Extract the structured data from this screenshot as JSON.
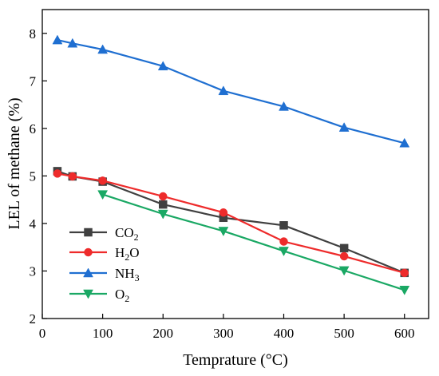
{
  "chart_data": {
    "type": "line",
    "xlabel": "Temprature (°C)",
    "ylabel": "LEL of methane (%)",
    "xlim": [
      0,
      640
    ],
    "ylim": [
      2,
      8.5
    ],
    "xticks": [
      0,
      100,
      200,
      300,
      400,
      500,
      600
    ],
    "yticks": [
      2,
      3,
      4,
      5,
      6,
      7,
      8
    ],
    "xtick_labels": [
      "0",
      "100",
      "200",
      "300",
      "400",
      "500",
      "600"
    ],
    "ytick_labels": [
      "2",
      "3",
      "4",
      "5",
      "6",
      "7",
      "8"
    ],
    "grid": false,
    "legend_placement": "bottom-left",
    "series": [
      {
        "name": "CO2",
        "label_main": "CO",
        "label_sub": "2",
        "color": "#404040",
        "marker": "square",
        "x": [
          25,
          50,
          100,
          200,
          300,
          400,
          500,
          600
        ],
        "y": [
          5.1,
          4.99,
          4.88,
          4.4,
          4.12,
          3.96,
          3.48,
          2.96
        ]
      },
      {
        "name": "H2O",
        "label_main": "H",
        "label_sub": "2",
        "label_tail": "O",
        "color": "#ee2b2b",
        "marker": "circle",
        "x": [
          25,
          50,
          100,
          200,
          300,
          400,
          500,
          600
        ],
        "y": [
          5.05,
          4.99,
          4.9,
          4.57,
          4.23,
          3.62,
          3.31,
          2.96
        ]
      },
      {
        "name": "NH3",
        "label_main": "NH",
        "label_sub": "3",
        "color": "#1f6fd1",
        "marker": "triangle-up",
        "x": [
          25,
          50,
          100,
          200,
          300,
          400,
          500,
          600
        ],
        "y": [
          7.86,
          7.79,
          7.66,
          7.31,
          6.79,
          6.46,
          6.02,
          5.69
        ]
      },
      {
        "name": "O2",
        "label_main": "O",
        "label_sub": "2",
        "color": "#1aa864",
        "marker": "triangle-down",
        "x": [
          100,
          200,
          300,
          400,
          500,
          600
        ],
        "y": [
          4.61,
          4.2,
          3.84,
          3.42,
          3.01,
          2.6
        ]
      }
    ]
  }
}
